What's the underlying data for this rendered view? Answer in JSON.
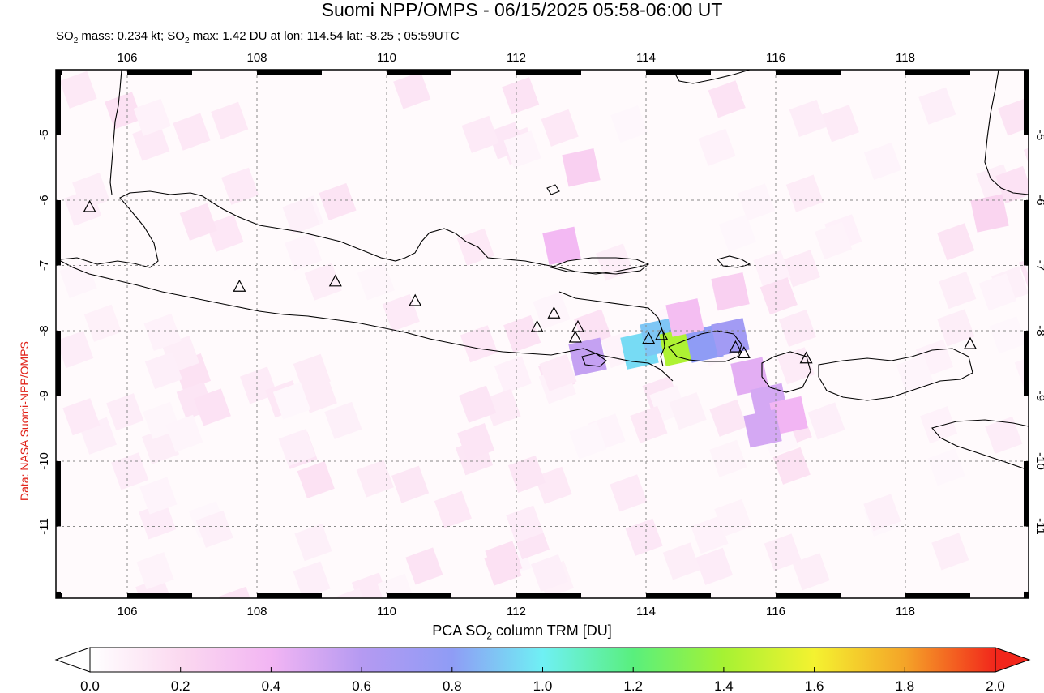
{
  "title": "Suomi NPP/OMPS - 06/15/2025 05:58-06:00 UT",
  "subtitle": {
    "prefix": "SO",
    "sub": "2",
    "middle": " mass: 0.234 kt; SO",
    "sub2": "2",
    "suffix": " max: 1.42 DU at lon: 114.54 lat: -8.25 ; 05:59UTC"
  },
  "credit": "Data: NASA Suomi-NPP/OMPS",
  "colorbar": {
    "title_prefix": "PCA SO",
    "title_sub": "2",
    "title_suffix": " column TRM [DU]",
    "tick_labels": [
      "0.0",
      "0.2",
      "0.4",
      "0.6",
      "0.8",
      "1.0",
      "1.2",
      "1.4",
      "1.6",
      "1.8",
      "2.0"
    ],
    "min": 0.0,
    "max": 2.0,
    "colors": [
      "#ffffff",
      "#fbd9f0",
      "#f2b5f3",
      "#b59af2",
      "#8f9cf5",
      "#6ff0f4",
      "#59ef7d",
      "#a6f233",
      "#f4f230",
      "#f4a428",
      "#f2261b"
    ]
  },
  "map": {
    "lon_range": [
      104.9,
      119.9
    ],
    "lat_range": [
      -12.1,
      -4.0
    ],
    "lon_ticks": [
      "106",
      "108",
      "110",
      "112",
      "114",
      "116",
      "118"
    ],
    "lat_ticks": [
      "-5",
      "-6",
      "-7",
      "-8",
      "-9",
      "-10",
      "-11"
    ],
    "grid": "dotted",
    "pixels": [
      {
        "lon": 113.9,
        "lat": -8.3,
        "du": 0.95
      },
      {
        "lon": 114.2,
        "lat": -8.1,
        "du": 0.9
      },
      {
        "lon": 114.5,
        "lat": -8.25,
        "du": 1.42
      },
      {
        "lon": 114.9,
        "lat": -8.2,
        "du": 0.8
      },
      {
        "lon": 115.3,
        "lat": -8.1,
        "du": 0.7
      },
      {
        "lon": 113.1,
        "lat": -8.4,
        "du": 0.55
      },
      {
        "lon": 114.6,
        "lat": -7.8,
        "du": 0.35
      },
      {
        "lon": 115.6,
        "lat": -8.7,
        "du": 0.45
      },
      {
        "lon": 115.9,
        "lat": -9.1,
        "du": 0.5
      },
      {
        "lon": 116.2,
        "lat": -9.3,
        "du": 0.4
      },
      {
        "lon": 115.8,
        "lat": -9.5,
        "du": 0.5
      },
      {
        "lon": 112.7,
        "lat": -6.7,
        "du": 0.38
      },
      {
        "lon": 115.3,
        "lat": -7.4,
        "du": 0.25
      },
      {
        "lon": 113.0,
        "lat": -5.5,
        "du": 0.25
      },
      {
        "lon": 119.3,
        "lat": -6.2,
        "du": 0.22
      }
    ],
    "volcano_icon": "triangle-outline-icon",
    "volcanoes": [
      {
        "lon": 105.42,
        "lat": -6.1
      },
      {
        "lon": 107.73,
        "lat": -7.32
      },
      {
        "lon": 109.21,
        "lat": -7.24
      },
      {
        "lon": 110.44,
        "lat": -7.54
      },
      {
        "lon": 112.32,
        "lat": -7.94
      },
      {
        "lon": 112.58,
        "lat": -7.73
      },
      {
        "lon": 112.95,
        "lat": -7.94
      },
      {
        "lon": 112.91,
        "lat": -8.1
      },
      {
        "lon": 114.04,
        "lat": -8.12
      },
      {
        "lon": 114.24,
        "lat": -8.06
      },
      {
        "lon": 115.38,
        "lat": -8.25
      },
      {
        "lon": 115.51,
        "lat": -8.34
      },
      {
        "lon": 116.47,
        "lat": -8.42
      },
      {
        "lon": 119.0,
        "lat": -8.2
      }
    ]
  }
}
